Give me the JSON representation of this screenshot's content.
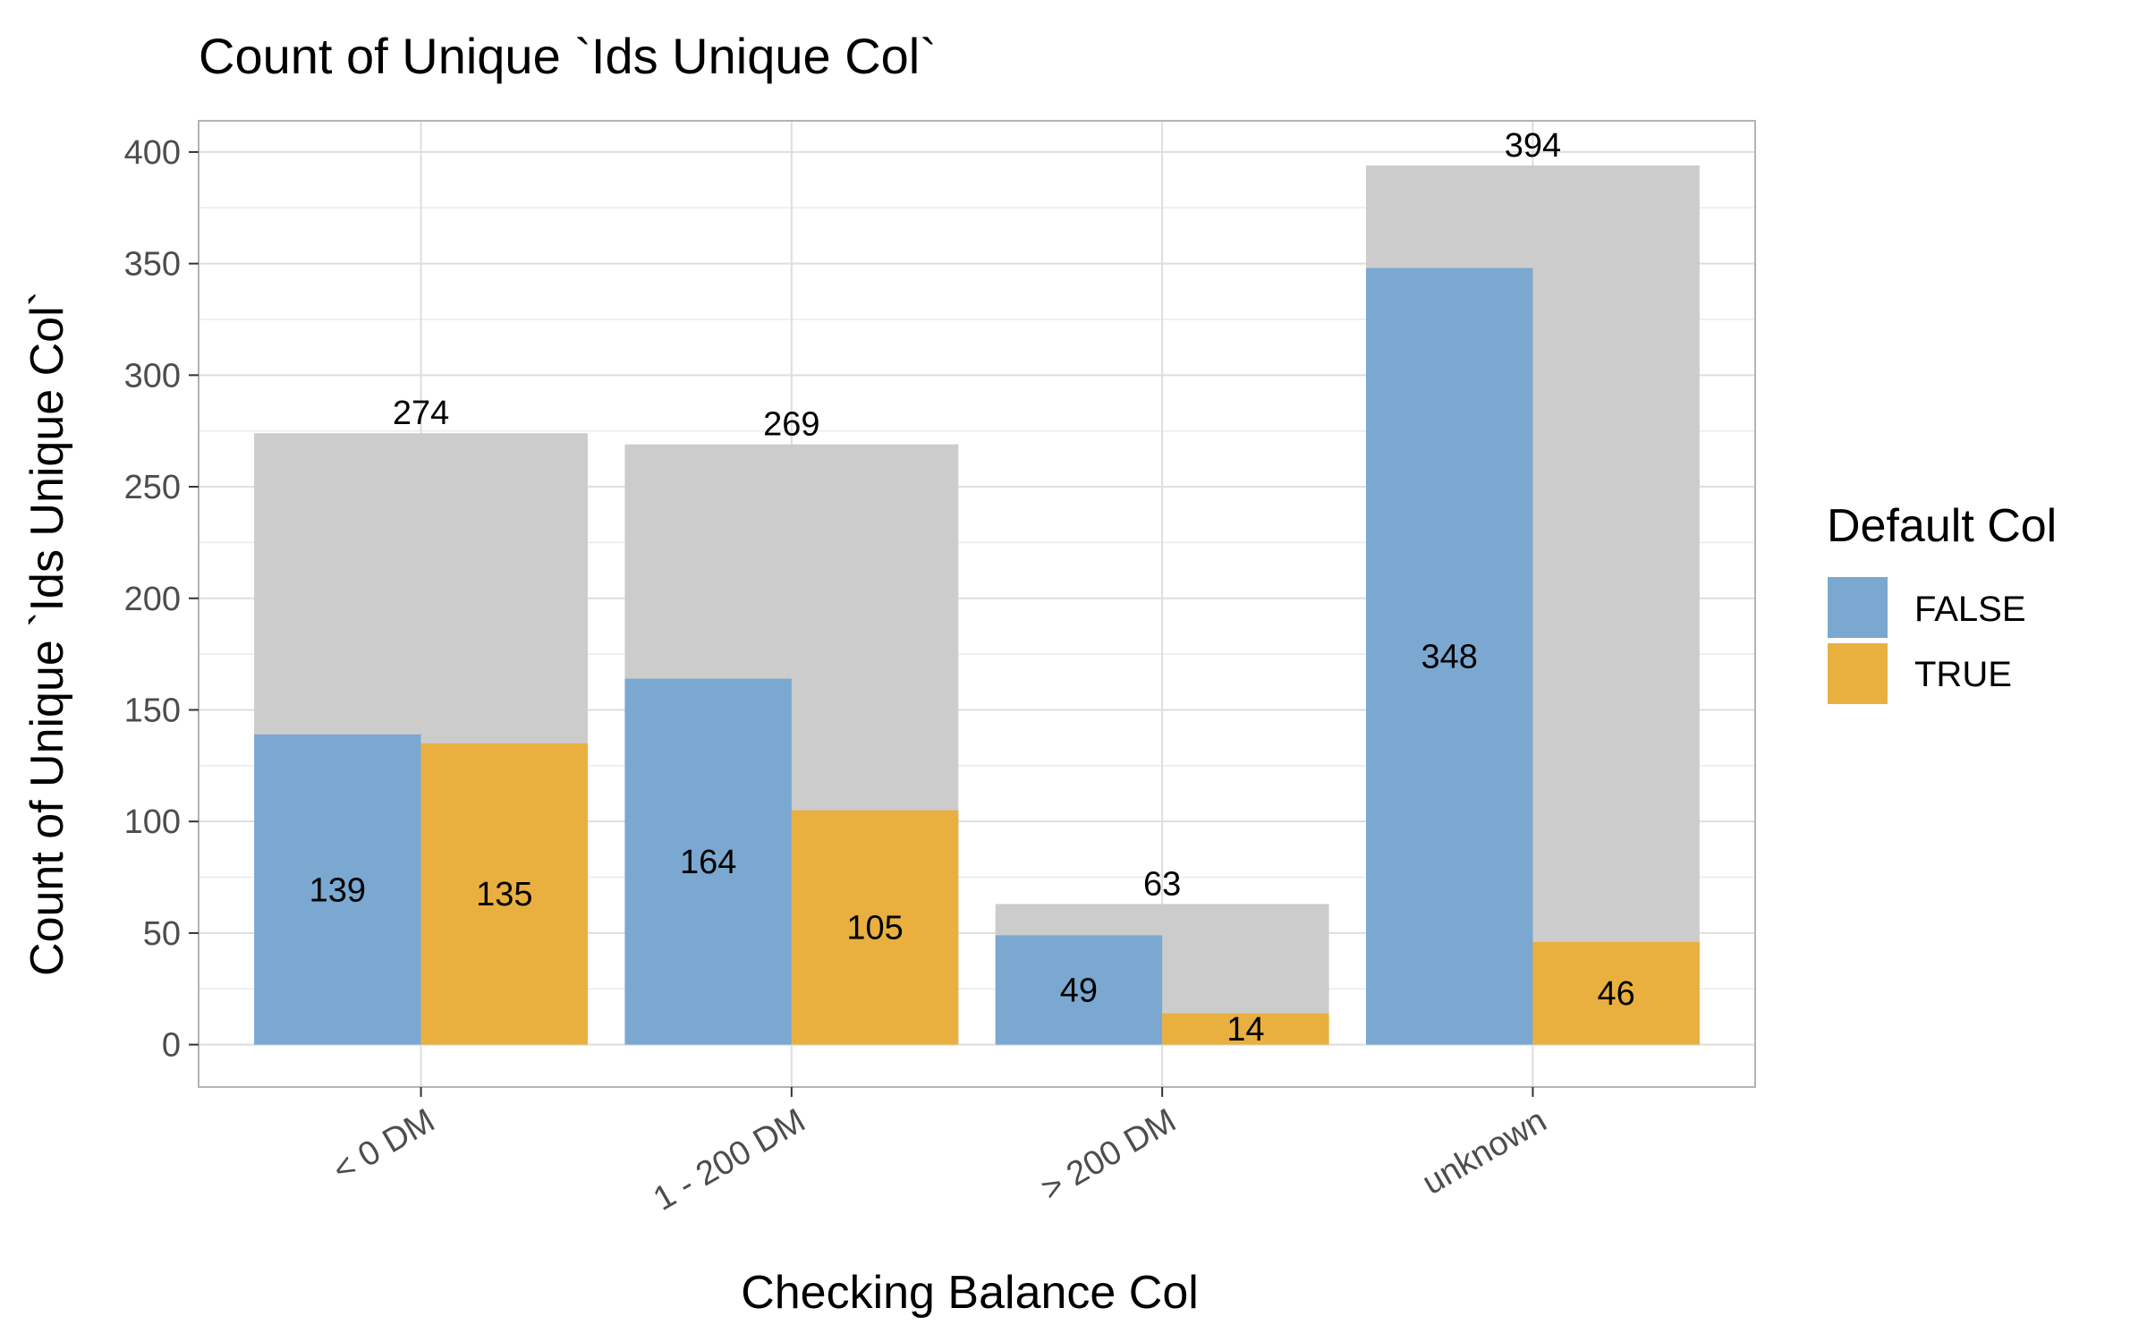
{
  "chart_data": {
    "type": "bar",
    "title": "Count of Unique `Ids Unique Col`",
    "xlabel": "Checking Balance Col",
    "ylabel": "Count of Unique `Ids Unique Col`",
    "categories": [
      "< 0 DM",
      "1 - 200 DM",
      "> 200 DM",
      "unknown"
    ],
    "totals": [
      274,
      269,
      63,
      394
    ],
    "series": [
      {
        "name": "FALSE",
        "values": [
          139,
          164,
          49,
          348
        ],
        "color": "#7aa8d0"
      },
      {
        "name": "TRUE",
        "values": [
          135,
          105,
          14,
          46
        ],
        "color": "#e9b03f"
      }
    ],
    "total_bar_color": "#cccccc",
    "ylim": [
      -19,
      414
    ],
    "yticks": [
      0,
      50,
      100,
      150,
      200,
      250,
      300,
      350,
      400
    ],
    "grid": true,
    "legend": {
      "title": "Default Col",
      "placement": "right"
    },
    "x_tick_rotation": "angled"
  }
}
